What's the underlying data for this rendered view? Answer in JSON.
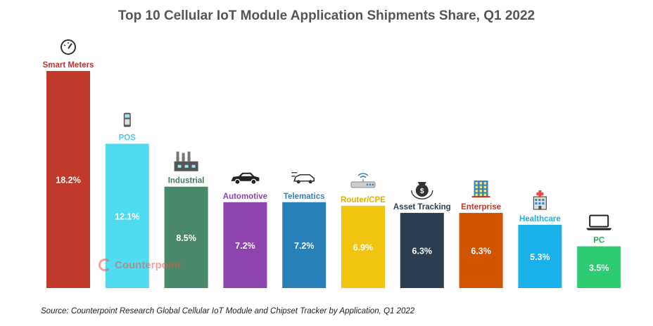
{
  "chart_data": {
    "type": "bar",
    "title": "Top 10 Cellular IoT Module Application Shipments Share, Q1 2022",
    "categories": [
      "Smart Meters",
      "POS",
      "Industrial",
      "Automotive",
      "Telematics",
      "Router/CPE",
      "Asset Tracking",
      "Enterprise",
      "Healthcare",
      "PC"
    ],
    "values": [
      18.2,
      12.1,
      8.5,
      7.2,
      7.2,
      6.9,
      6.3,
      6.3,
      5.3,
      3.5
    ],
    "value_labels": [
      "18.2%",
      "12.1%",
      "8.5%",
      "7.2%",
      "7.2%",
      "6.9%",
      "6.3%",
      "6.3%",
      "5.3%",
      "3.5%"
    ],
    "colors": [
      "#c0392b",
      "#4fdcf0",
      "#4a8a6a",
      "#8e44ad",
      "#2980b9",
      "#f1c40f",
      "#2c3e50",
      "#d35400",
      "#1ab0ea",
      "#2ecc71"
    ],
    "label_colors": [
      "#b03a2e",
      "#4fc8e8",
      "#3f7d5c",
      "#8e44ad",
      "#2e86c1",
      "#e0b000",
      "#2c3e50",
      "#c0392b",
      "#1ab0ea",
      "#27ae60"
    ],
    "icons": [
      "meter-icon",
      "pos-terminal-icon",
      "factory-icon",
      "car-icon",
      "telematics-icon",
      "router-icon",
      "asset-tracking-icon",
      "building-icon",
      "hospital-icon",
      "laptop-icon"
    ],
    "ylim": [
      0,
      18.2
    ],
    "xlabel": "",
    "ylabel": "",
    "grid": false,
    "legend": "none"
  },
  "source": "Source: Counterpoint Research Global Cellular IoT Module and Chipset Tracker by Application, Q1 2022",
  "watermark": {
    "name": "Counterpoint"
  }
}
